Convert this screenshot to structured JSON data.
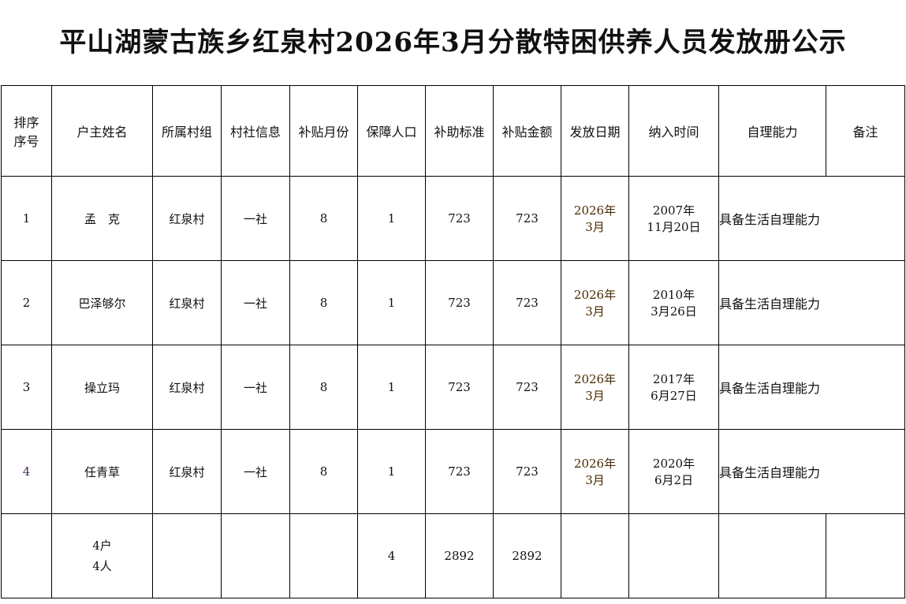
{
  "title": "平山湖蒙古族乡红泉村2026年3月分散特困供养人员发放册公示",
  "headers": [
    "排序序号",
    "户主姓名",
    "所属村组",
    "村社信息",
    "补贴月份",
    "保障人口",
    "补助标准",
    "补贴金额",
    "发放日期",
    "纳入时间",
    "自理能力",
    "备注"
  ],
  "rows": [
    {
      "no": "1",
      "name": "孟　克",
      "group": "红泉村",
      "info": "一社",
      "months": "8",
      "people": "1",
      "standard": "723",
      "amount": "723",
      "issue_date": "2026年\n3月",
      "join_date": "2007年\n11月20日",
      "ability": "具备生活自理能力"
    },
    {
      "no": "2",
      "name": "巴泽够尔",
      "group": "红泉村",
      "info": "一社",
      "months": "8",
      "people": "1",
      "standard": "723",
      "amount": "723",
      "issue_date": "2026年\n3月",
      "join_date": "2010年\n3月26日",
      "ability": "具备生活自理能力"
    },
    {
      "no": "3",
      "name": "操立玛",
      "group": "红泉村",
      "info": "一社",
      "months": "8",
      "people": "1",
      "standard": "723",
      "amount": "723",
      "issue_date": "2026年\n3月",
      "join_date": "2017年\n6月27日",
      "ability": "具备生活自理能力"
    },
    {
      "no": "4",
      "name": "任青草",
      "group": "红泉村",
      "info": "一社",
      "months": "8",
      "people": "1",
      "standard": "723",
      "amount": "723",
      "issue_date": "2026年\n3月",
      "join_date": "2020年\n6月2日",
      "ability": "具备生活自理能力"
    }
  ],
  "total": {
    "households": "4户\n4人",
    "people": "4",
    "standard": "2892",
    "amount": "2892"
  }
}
